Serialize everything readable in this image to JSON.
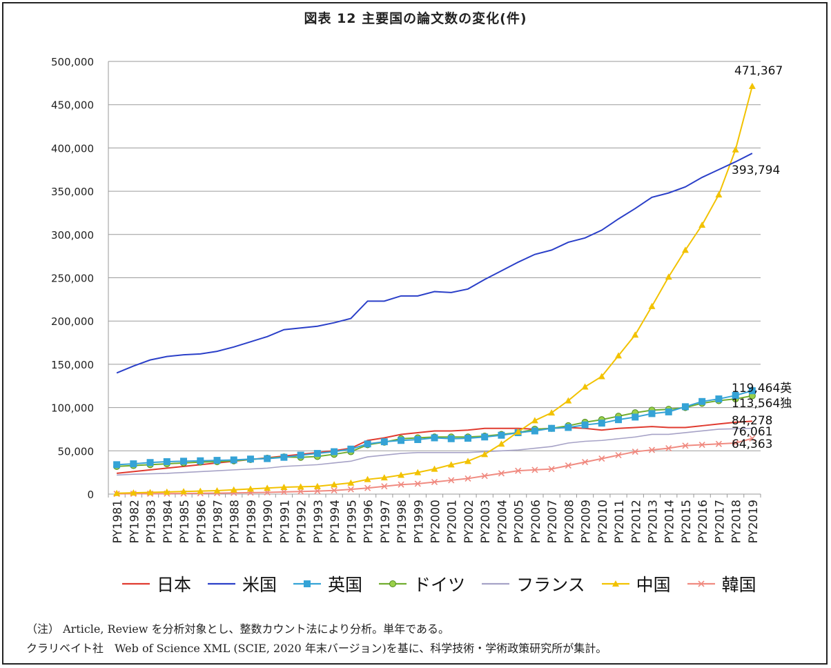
{
  "chart_data": {
    "type": "line",
    "title": "図表 12 主要国の論文数の変化(件)",
    "x": [
      "PY1981",
      "PY1982",
      "PY1983",
      "PY1984",
      "PY1985",
      "PY1986",
      "PY1987",
      "PY1988",
      "PY1989",
      "PY1990",
      "PY1991",
      "PY1992",
      "PY1993",
      "PY1994",
      "PY1995",
      "PY1996",
      "PY1997",
      "PY1998",
      "PY1999",
      "PY2000",
      "PY2001",
      "PY2002",
      "PY2003",
      "PY2004",
      "PY2005",
      "PY2006",
      "PY2007",
      "PY2008",
      "PY2009",
      "PY2010",
      "PY2011",
      "PY2012",
      "PY2013",
      "PY2014",
      "PY2015",
      "PY2016",
      "PY2017",
      "PY2018",
      "PY2019"
    ],
    "ylim": [
      0,
      500000
    ],
    "yticks": [
      0,
      50000,
      100000,
      150000,
      200000,
      250000,
      300000,
      350000,
      400000,
      450000,
      500000
    ],
    "ytick_labels": [
      "0",
      "50,000",
      "100,000",
      "150,000",
      "200,000",
      "250,000",
      "300,000",
      "350,000",
      "400,000",
      "450,000",
      "500,000"
    ],
    "grid": true,
    "legend_position": "bottom",
    "series": [
      {
        "name": "日本",
        "color": "#e03a2f",
        "marker": "none",
        "values": [
          24000,
          26000,
          28000,
          30000,
          32000,
          34000,
          36000,
          38000,
          40000,
          42000,
          44000,
          46000,
          48000,
          50000,
          53000,
          62000,
          65000,
          69000,
          71000,
          73000,
          73000,
          74000,
          76000,
          76000,
          76000,
          75000,
          76000,
          77000,
          76000,
          74000,
          76000,
          77000,
          78000,
          77000,
          77000,
          79000,
          81000,
          83000,
          84278
        ]
      },
      {
        "name": "米国",
        "color": "#2a3fc8",
        "marker": "none",
        "values": [
          140000,
          148000,
          155000,
          159000,
          161000,
          162000,
          165000,
          170000,
          176000,
          182000,
          190000,
          192000,
          194000,
          198000,
          203000,
          223000,
          223000,
          229000,
          229000,
          234000,
          233000,
          237000,
          248000,
          258000,
          268000,
          277000,
          282000,
          291000,
          296000,
          305000,
          318000,
          330000,
          343000,
          348000,
          355000,
          366000,
          375000,
          384000,
          393794
        ]
      },
      {
        "name": "英国",
        "color": "#35a3d6",
        "marker": "square",
        "values": [
          34000,
          35000,
          36500,
          37500,
          38000,
          38500,
          39000,
          39500,
          40500,
          41000,
          42500,
          45000,
          47000,
          49000,
          52000,
          58000,
          60500,
          62000,
          63000,
          65000,
          64000,
          64500,
          66000,
          68000,
          71000,
          73000,
          76000,
          77000,
          80000,
          82000,
          86000,
          89000,
          93000,
          95000,
          101000,
          107000,
          110000,
          114000,
          119464
        ]
      },
      {
        "name": "ドイツ",
        "color": "#70ad2e",
        "marker": "circle",
        "values": [
          32000,
          33000,
          34000,
          35000,
          36000,
          37000,
          37500,
          38500,
          40000,
          41500,
          43000,
          42500,
          43500,
          46000,
          49000,
          57000,
          60000,
          64000,
          65000,
          66000,
          66000,
          66000,
          67000,
          69000,
          71000,
          75000,
          76000,
          79000,
          83000,
          86000,
          90000,
          94000,
          97000,
          98000,
          100000,
          105000,
          108000,
          110000,
          113564
        ]
      },
      {
        "name": "フランス",
        "color": "#a6a2c6",
        "marker": "none",
        "values": [
          22000,
          23000,
          23500,
          24000,
          25000,
          26000,
          27000,
          28000,
          29000,
          30000,
          32000,
          33000,
          34000,
          36000,
          38000,
          43000,
          45000,
          47000,
          48000,
          48000,
          48000,
          48000,
          49000,
          50000,
          51000,
          53000,
          55000,
          59000,
          61000,
          62000,
          64000,
          66000,
          69000,
          69000,
          71000,
          73000,
          75000,
          75500,
          76061
        ]
      },
      {
        "name": "中国",
        "color": "#f2c200",
        "marker": "triangle",
        "values": [
          1000,
          1500,
          2000,
          2500,
          3000,
          3500,
          4000,
          5000,
          6000,
          7000,
          8000,
          8500,
          9000,
          11000,
          13000,
          17000,
          19000,
          22000,
          25000,
          29000,
          34000,
          38000,
          46000,
          58000,
          72000,
          85000,
          94000,
          108000,
          124000,
          136000,
          160000,
          184000,
          217000,
          251000,
          282000,
          311000,
          346000,
          398000,
          471367
        ]
      },
      {
        "name": "韓国",
        "color": "#f08a80",
        "marker": "x",
        "values": [
          300,
          400,
          500,
          600,
          700,
          900,
          1100,
          1400,
          1700,
          2000,
          2500,
          3000,
          3500,
          4200,
          5500,
          7000,
          9000,
          11000,
          12000,
          14000,
          16000,
          18000,
          21000,
          24000,
          27000,
          28000,
          29000,
          33000,
          37000,
          41000,
          45000,
          49000,
          51000,
          53000,
          56000,
          57000,
          58000,
          59000,
          64363
        ]
      }
    ],
    "annotations": [
      {
        "text": "471,367",
        "series": "中国"
      },
      {
        "text": "393,794",
        "series": "米国"
      },
      {
        "text": "119,464英",
        "series": "英国"
      },
      {
        "text": "113,564独",
        "series": "ドイツ"
      },
      {
        "text": "84,278",
        "series": "日本"
      },
      {
        "text": "76,061",
        "series": "フランス"
      },
      {
        "text": "64,363",
        "series": "韓国"
      }
    ]
  },
  "notes": [
    "（注） Article, Review を分析対象とし、整数カウント法により分析。単年である。",
    "クラリベイト社　Web of Science XML (SCIE, 2020 年末バージョン)を基に、科学技術・学術政策研究所が集計。"
  ]
}
